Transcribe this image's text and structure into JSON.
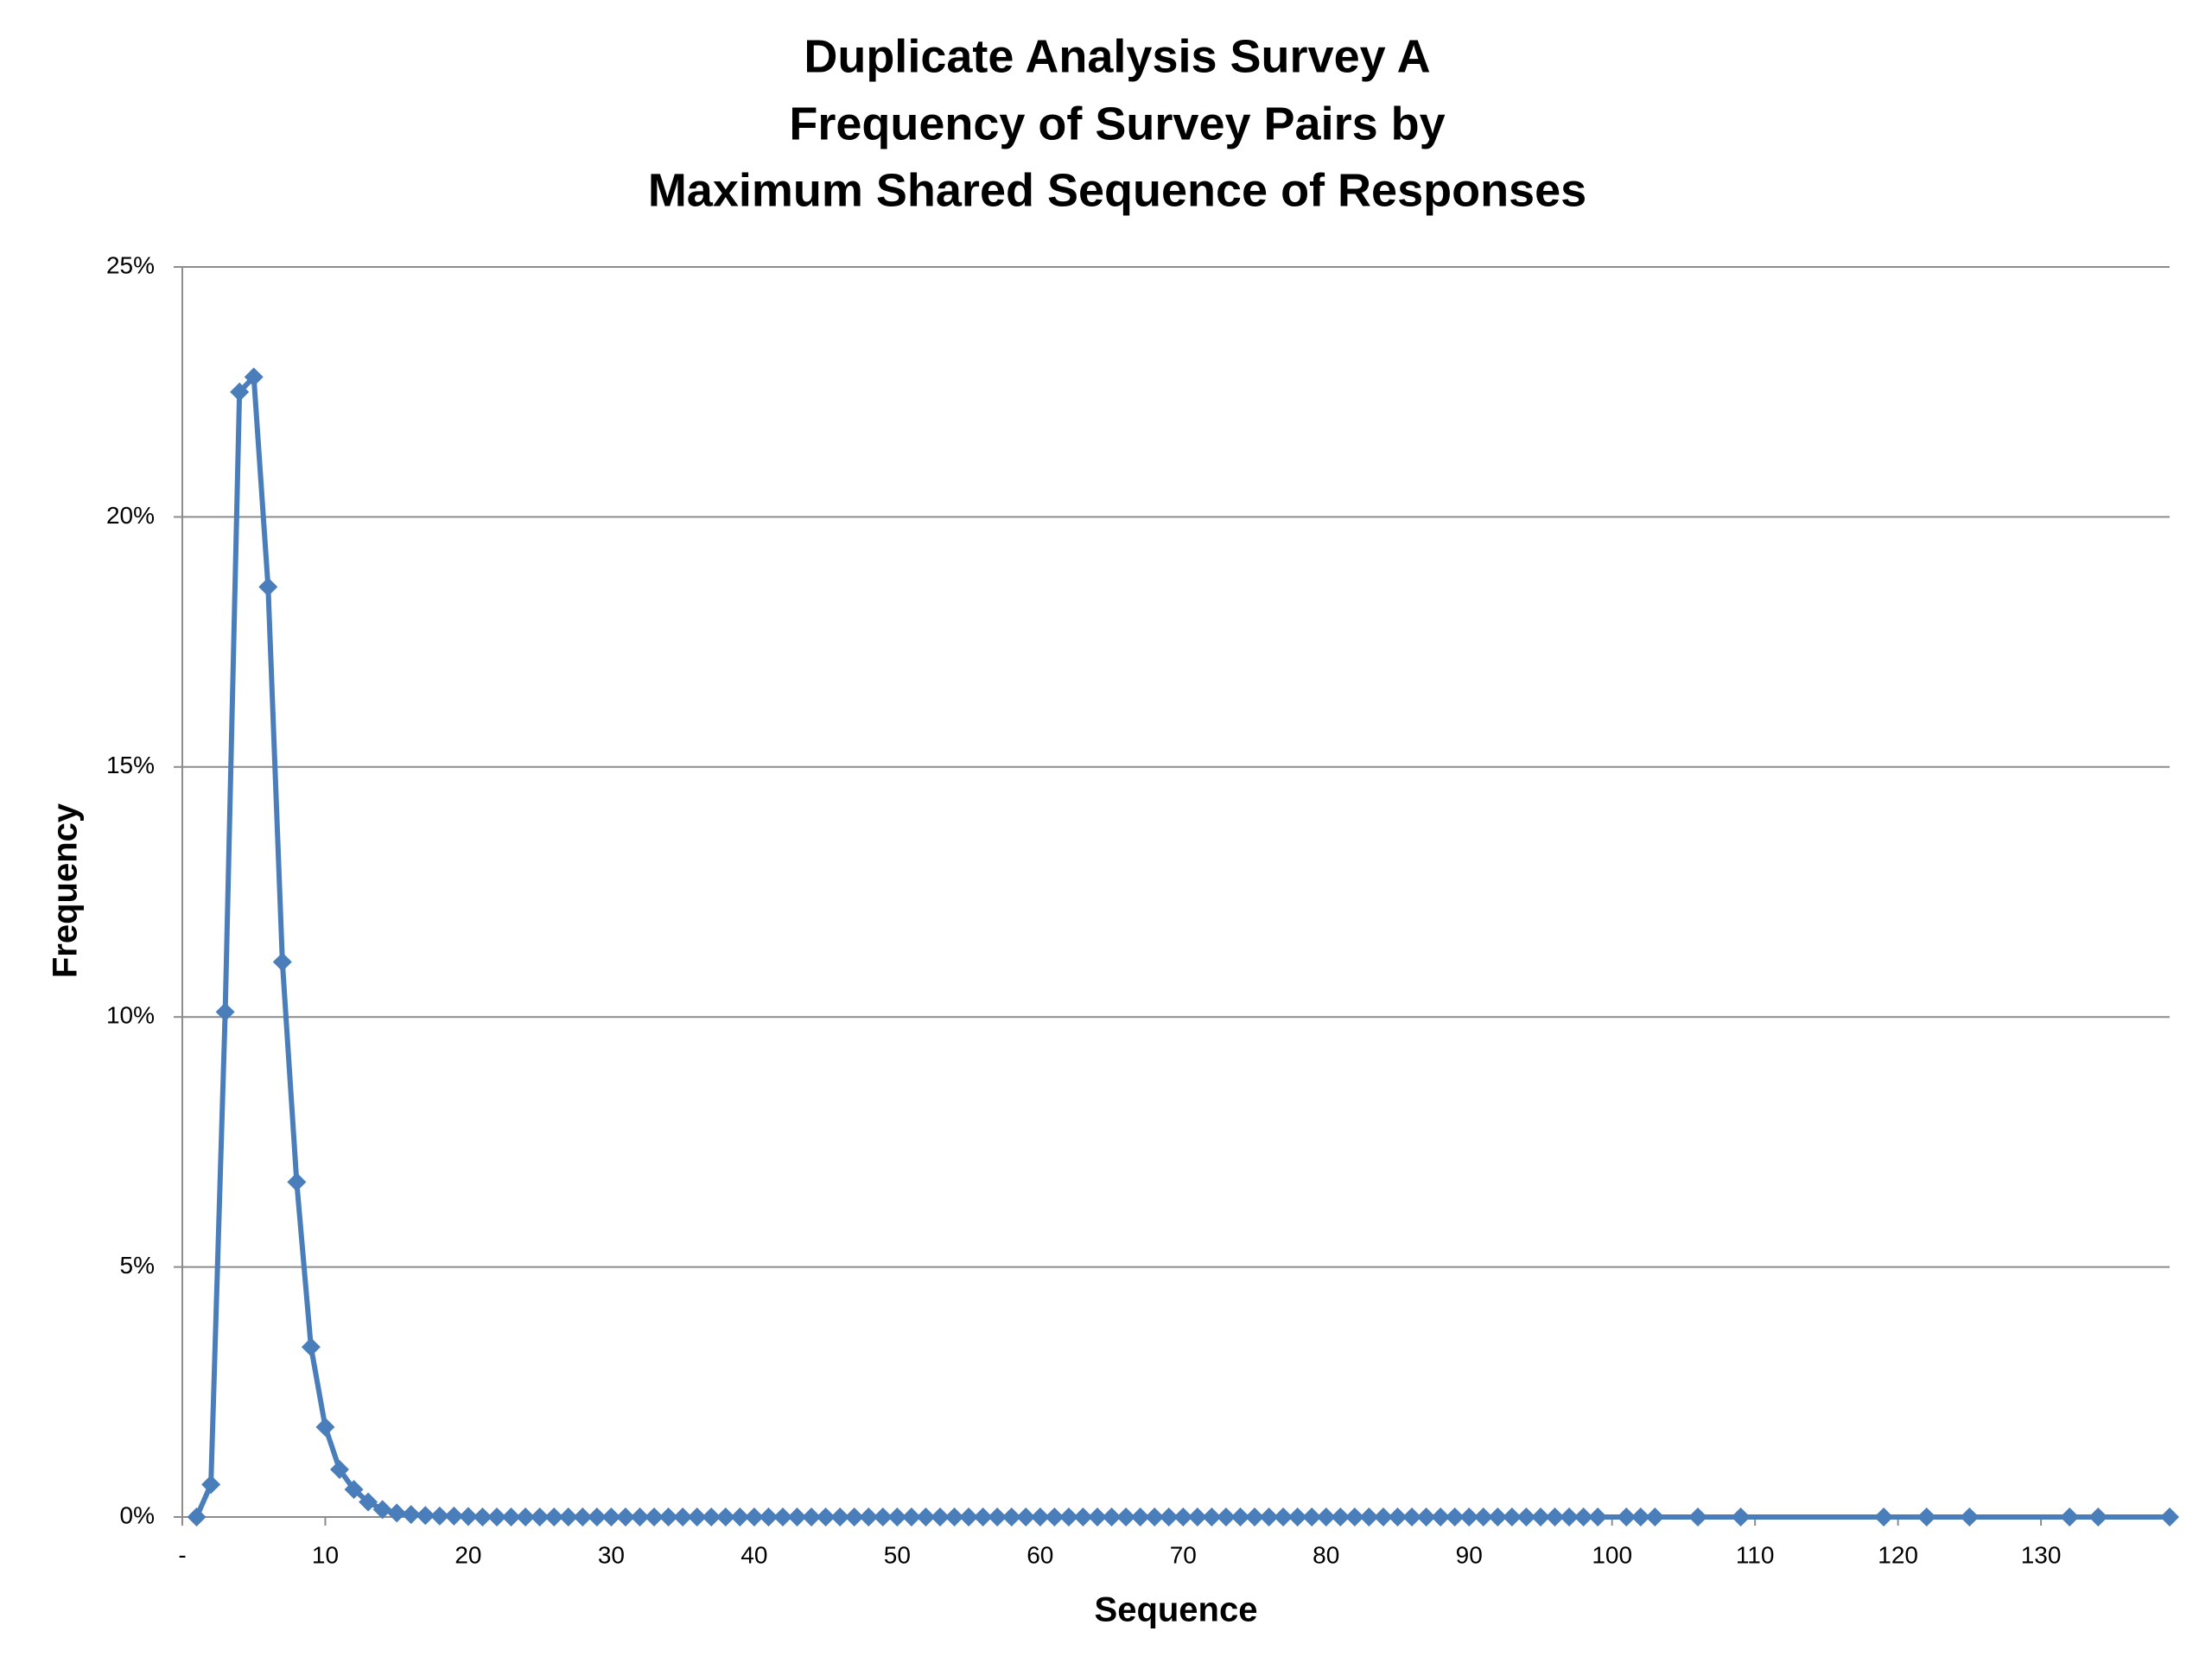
{
  "chart_data": {
    "type": "line",
    "title_lines": [
      "Duplicate Analysis Survey A",
      "Frequency of Survey Pairs by",
      "Maximum Shared Sequence of Responses"
    ],
    "x_label": "Sequence",
    "y_label": "Frequency",
    "x": [
      1,
      2,
      3,
      4,
      5,
      6,
      7,
      8,
      9,
      10,
      11,
      12,
      13,
      14,
      15,
      16,
      17,
      18,
      19,
      20,
      21,
      22,
      23,
      24,
      25,
      26,
      27,
      28,
      29,
      30,
      31,
      32,
      33,
      34,
      35,
      36,
      37,
      38,
      39,
      40,
      41,
      42,
      43,
      44,
      45,
      46,
      47,
      48,
      49,
      50,
      51,
      52,
      53,
      54,
      55,
      56,
      57,
      58,
      59,
      60,
      61,
      62,
      63,
      64,
      65,
      66,
      67,
      68,
      69,
      70,
      71,
      72,
      73,
      74,
      75,
      76,
      77,
      78,
      79,
      80,
      81,
      82,
      83,
      84,
      85,
      86,
      87,
      88,
      89,
      90,
      91,
      92,
      93,
      94,
      95,
      96,
      97,
      98,
      99,
      101,
      102,
      103,
      106,
      109,
      119,
      122,
      125,
      132,
      134,
      139
    ],
    "series": [
      {
        "color": "#4a7ebb",
        "values": [
          0,
          0.65,
          10.1,
          22.5,
          22.8,
          18.6,
          11.1,
          6.7,
          3.4,
          1.8,
          0.95,
          0.55,
          0.3,
          0.15,
          0.08,
          0.05,
          0.03,
          0.02,
          0.02,
          0.01,
          0,
          0,
          0,
          0,
          0,
          0,
          0,
          0,
          0,
          0,
          0,
          0,
          0,
          0,
          0,
          0,
          0,
          0,
          0,
          0,
          0,
          0,
          0,
          0,
          0,
          0,
          0,
          0,
          0,
          0,
          0,
          0,
          0,
          0,
          0,
          0,
          0,
          0,
          0,
          0,
          0,
          0,
          0,
          0,
          0,
          0,
          0,
          0,
          0,
          0,
          0,
          0,
          0,
          0,
          0,
          0,
          0,
          0,
          0,
          0,
          0,
          0,
          0,
          0,
          0,
          0,
          0,
          0,
          0,
          0,
          0,
          0,
          0,
          0,
          0,
          0,
          0,
          0,
          0,
          0,
          0,
          0,
          0,
          0,
          0,
          0,
          0,
          0,
          0,
          0
        ]
      }
    ],
    "xlim": [
      0,
      139
    ],
    "ylim": [
      0,
      25
    ],
    "xticks": [
      {
        "value": 0,
        "label": "-"
      },
      10,
      20,
      30,
      40,
      50,
      60,
      70,
      80,
      90,
      100,
      110,
      120,
      130
    ],
    "yticks": [
      {
        "value": 0,
        "label": "0%"
      },
      {
        "value": 5,
        "label": "5%"
      },
      {
        "value": 10,
        "label": "10%"
      },
      {
        "value": 15,
        "label": "15%"
      },
      {
        "value": 20,
        "label": "20%"
      },
      {
        "value": 25,
        "label": "25%"
      }
    ],
    "grid": true,
    "marker": "diamond"
  }
}
